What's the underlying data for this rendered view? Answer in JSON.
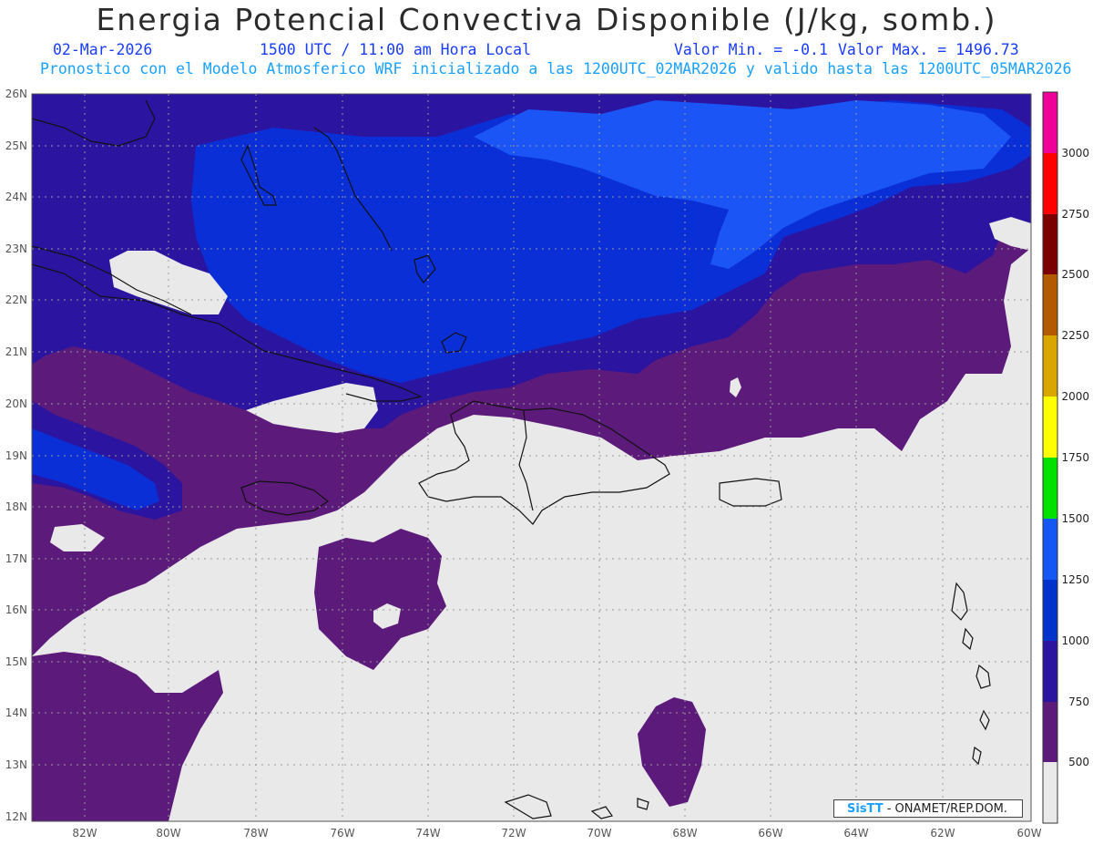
{
  "header": {
    "title": "Energia Potencial Convectiva Disponible (J/kg, somb.)",
    "date": "02-Mar-2026",
    "time": "1500 UTC / 11:00 am Hora Local",
    "min_label": "Valor Min. = -0.1",
    "max_label": "Valor Max. = 1496.73",
    "subtitle": "Pronostico con el Modelo Atmosferico WRF inicializado a las 1200UTC_02MAR2026 y valido hasta las  1200UTC_05MAR2026"
  },
  "map": {
    "lat_labels": [
      "26N",
      "25N",
      "24N",
      "23N",
      "22N",
      "21N",
      "20N",
      "19N",
      "18N",
      "17N",
      "16N",
      "15N",
      "14N",
      "13N",
      "12N"
    ],
    "lon_labels": [
      "82W",
      "80W",
      "78W",
      "76W",
      "74W",
      "72W",
      "70W",
      "68W",
      "66W",
      "64W",
      "62W",
      "60W"
    ]
  },
  "colorbar": {
    "labels": [
      "3000",
      "2750",
      "2500",
      "2250",
      "2000",
      "1750",
      "1500",
      "1250",
      "1000",
      "750",
      "500"
    ],
    "colors": [
      "#ee0099",
      "#ff0000",
      "#7a0000",
      "#b35900",
      "#d9a600",
      "#ffff00",
      "#00e100",
      "#1457f5",
      "#0033cc",
      "#2b14a0",
      "#5c1a7a",
      "#e9e9e9"
    ]
  },
  "credit": {
    "brand": "SisTT",
    "text": "- ONAMET/REP.DOM."
  }
}
